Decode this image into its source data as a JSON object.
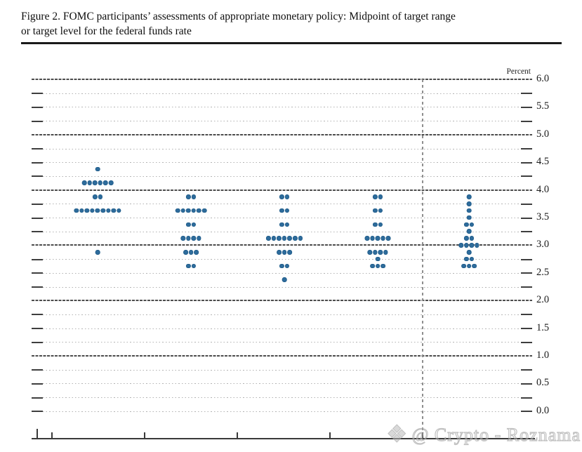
{
  "figure": {
    "title_line1": "Figure 2. FOMC participants’ assessments of appropriate monetary policy: Midpoint of target range",
    "title_line2": "or target level for the federal funds rate"
  },
  "watermark": {
    "logo": "❖",
    "text": "@ Crypto - Roznama"
  },
  "chart_data": {
    "type": "scatter",
    "subtype": "fomc-dot-plot",
    "title": "FOMC participants’ assessments of appropriate monetary policy: Midpoint of target range or target level for the federal funds rate",
    "ylabel": "Percent",
    "ylim": [
      0.0,
      6.0
    ],
    "y_step": 0.25,
    "y_label_step": 0.5,
    "y_major_lines": [
      1.0,
      2.0,
      3.0,
      4.0,
      5.0,
      6.0
    ],
    "y_tick_labels": [
      "6.0",
      "5.5",
      "5.0",
      "4.5",
      "4.0",
      "3.5",
      "3.0",
      "2.5",
      "2.0",
      "1.5",
      "1.0",
      "0.5",
      "0.0"
    ],
    "grid": true,
    "legend_position": "none",
    "x_category_labels_visible": false,
    "divider_before_last_column": true,
    "participants_per_column": 19,
    "dot_color": "#2e6c9c",
    "columns": [
      {
        "dots": {
          "4.375": 1,
          "4.125": 6,
          "3.875": 2,
          "3.625": 9,
          "2.875": 1
        }
      },
      {
        "dots": {
          "3.875": 2,
          "3.625": 6,
          "3.375": 2,
          "3.125": 4,
          "2.875": 3,
          "2.625": 2
        }
      },
      {
        "dots": {
          "3.875": 2,
          "3.625": 2,
          "3.375": 2,
          "3.125": 7,
          "2.875": 3,
          "2.625": 2,
          "2.375": 1
        }
      },
      {
        "dots": {
          "3.875": 2,
          "3.625": 2,
          "3.375": 2,
          "3.125": 5,
          "2.875": 4,
          "2.75": 1,
          "2.625": 3
        }
      },
      {
        "dots": {
          "3.875": 1,
          "3.75": 1,
          "3.625": 1,
          "3.5": 1,
          "3.375": 2,
          "3.25": 1,
          "3.125": 2,
          "3.0": 4,
          "2.875": 1,
          "2.75": 2,
          "2.625": 3
        }
      }
    ]
  }
}
